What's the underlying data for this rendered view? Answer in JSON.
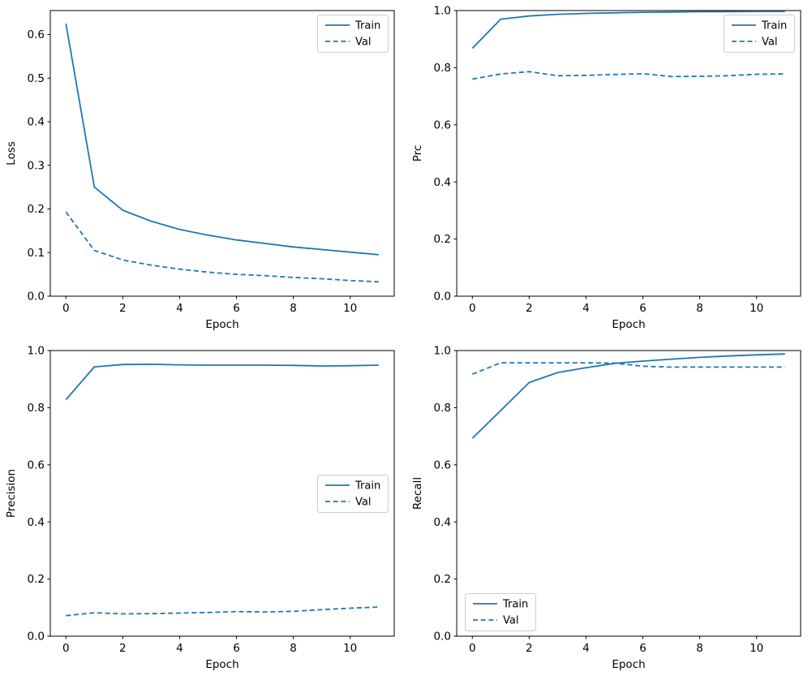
{
  "figure": {
    "background": "#ffffff",
    "line_color": "#1f77b4",
    "axes_color": "#000000",
    "legend_border_color": "#cccccc"
  },
  "chart_data": [
    {
      "type": "line",
      "title": "",
      "xlabel": "Epoch",
      "ylabel": "Loss",
      "x": [
        0,
        1,
        2,
        3,
        4,
        5,
        6,
        7,
        8,
        9,
        10,
        11
      ],
      "series": [
        {
          "name": "Train",
          "style": "solid",
          "values": [
            0.625,
            0.25,
            0.197,
            0.172,
            0.153,
            0.14,
            0.129,
            0.121,
            0.113,
            0.107,
            0.101,
            0.095
          ]
        },
        {
          "name": "Val",
          "style": "dashed",
          "values": [
            0.193,
            0.105,
            0.083,
            0.071,
            0.062,
            0.055,
            0.05,
            0.047,
            0.043,
            0.04,
            0.036,
            0.033
          ]
        }
      ],
      "xlim": [
        -0.55,
        11.55
      ],
      "ylim": [
        0.0,
        0.655
      ],
      "xticks": [
        0,
        2,
        4,
        6,
        8,
        10
      ],
      "xtick_labels": [
        "0",
        "2",
        "4",
        "6",
        "8",
        "10"
      ],
      "yticks": [
        0.0,
        0.1,
        0.2,
        0.3,
        0.4,
        0.5,
        0.6
      ],
      "ytick_labels": [
        "0.0",
        "0.1",
        "0.2",
        "0.3",
        "0.4",
        "0.5",
        "0.6"
      ],
      "grid": false,
      "legend_pos": "upper-right"
    },
    {
      "type": "line",
      "title": "",
      "xlabel": "Epoch",
      "ylabel": "Prc",
      "x": [
        0,
        1,
        2,
        3,
        4,
        5,
        6,
        7,
        8,
        9,
        10,
        11
      ],
      "series": [
        {
          "name": "Train",
          "style": "solid",
          "values": [
            0.868,
            0.97,
            0.981,
            0.987,
            0.99,
            0.992,
            0.994,
            0.995,
            0.996,
            0.996,
            0.997,
            0.997
          ]
        },
        {
          "name": "Val",
          "style": "dashed",
          "values": [
            0.76,
            0.778,
            0.786,
            0.772,
            0.773,
            0.776,
            0.779,
            0.769,
            0.77,
            0.772,
            0.777,
            0.778
          ]
        }
      ],
      "xlim": [
        -0.55,
        11.55
      ],
      "ylim": [
        0.0,
        1.0
      ],
      "xticks": [
        0,
        2,
        4,
        6,
        8,
        10
      ],
      "xtick_labels": [
        "0",
        "2",
        "4",
        "6",
        "8",
        "10"
      ],
      "yticks": [
        0.0,
        0.2,
        0.4,
        0.6,
        0.8,
        1.0
      ],
      "ytick_labels": [
        "0.0",
        "0.2",
        "0.4",
        "0.6",
        "0.8",
        "1.0"
      ],
      "grid": false,
      "legend_pos": "upper-right"
    },
    {
      "type": "line",
      "title": "",
      "xlabel": "Epoch",
      "ylabel": "Precision",
      "x": [
        0,
        1,
        2,
        3,
        4,
        5,
        6,
        7,
        8,
        9,
        10,
        11
      ],
      "series": [
        {
          "name": "Train",
          "style": "solid",
          "values": [
            0.828,
            0.943,
            0.951,
            0.952,
            0.95,
            0.949,
            0.949,
            0.949,
            0.948,
            0.946,
            0.947,
            0.949
          ]
        },
        {
          "name": "Val",
          "style": "dashed",
          "values": [
            0.072,
            0.082,
            0.078,
            0.079,
            0.081,
            0.083,
            0.086,
            0.085,
            0.087,
            0.093,
            0.098,
            0.102
          ]
        }
      ],
      "xlim": [
        -0.55,
        11.55
      ],
      "ylim": [
        0.0,
        1.0
      ],
      "xticks": [
        0,
        2,
        4,
        6,
        8,
        10
      ],
      "xtick_labels": [
        "0",
        "2",
        "4",
        "6",
        "8",
        "10"
      ],
      "yticks": [
        0.0,
        0.2,
        0.4,
        0.6,
        0.8,
        1.0
      ],
      "ytick_labels": [
        "0.0",
        "0.2",
        "0.4",
        "0.6",
        "0.8",
        "1.0"
      ],
      "grid": false,
      "legend_pos": "center-right"
    },
    {
      "type": "line",
      "title": "",
      "xlabel": "Epoch",
      "ylabel": "Recall",
      "x": [
        0,
        1,
        2,
        3,
        4,
        5,
        6,
        7,
        8,
        9,
        10,
        11
      ],
      "series": [
        {
          "name": "Train",
          "style": "solid",
          "values": [
            0.693,
            0.79,
            0.888,
            0.923,
            0.94,
            0.955,
            0.963,
            0.97,
            0.976,
            0.981,
            0.985,
            0.988
          ]
        },
        {
          "name": "Val",
          "style": "dashed",
          "values": [
            0.917,
            0.957,
            0.957,
            0.957,
            0.957,
            0.956,
            0.945,
            0.942,
            0.942,
            0.942,
            0.942,
            0.942
          ]
        }
      ],
      "xlim": [
        -0.55,
        11.55
      ],
      "ylim": [
        0.0,
        1.0
      ],
      "xticks": [
        0,
        2,
        4,
        6,
        8,
        10
      ],
      "xtick_labels": [
        "0",
        "2",
        "4",
        "6",
        "8",
        "10"
      ],
      "yticks": [
        0.0,
        0.2,
        0.4,
        0.6,
        0.8,
        1.0
      ],
      "ytick_labels": [
        "0.0",
        "0.2",
        "0.4",
        "0.6",
        "0.8",
        "1.0"
      ],
      "grid": false,
      "legend_pos": "lower-left"
    }
  ]
}
